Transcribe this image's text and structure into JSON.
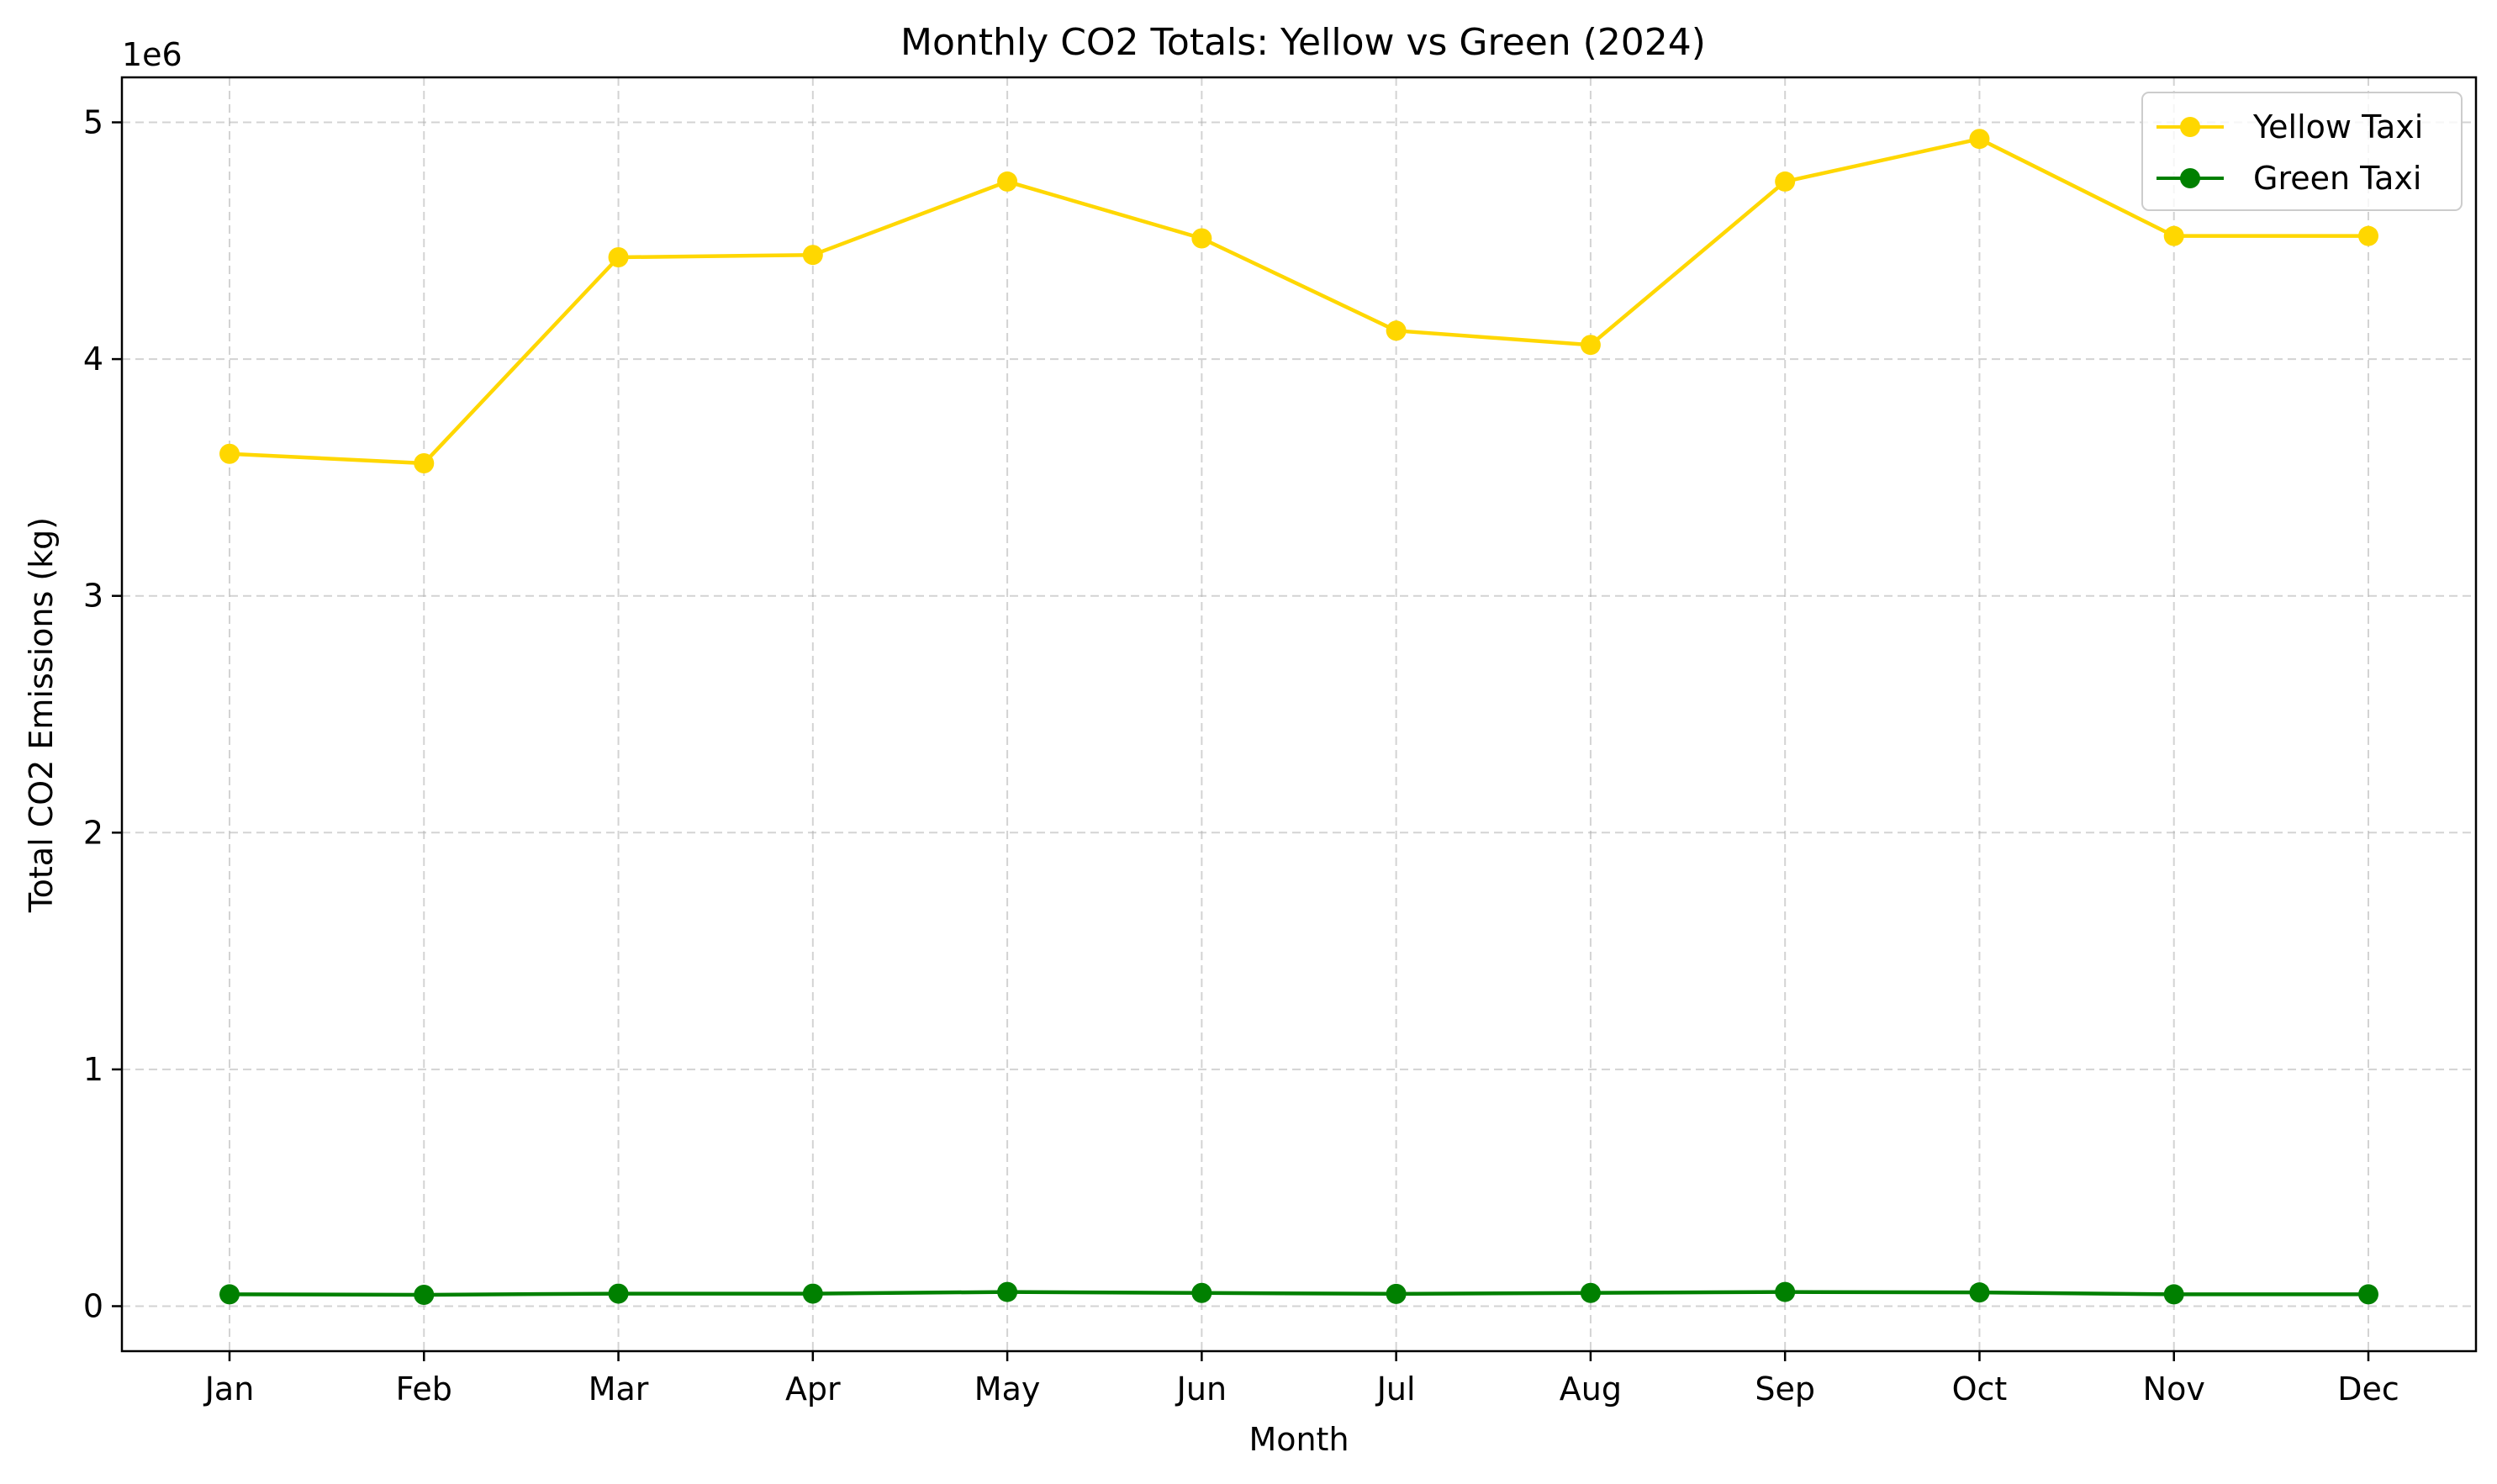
{
  "chart_data": {
    "type": "line",
    "title": "Monthly CO2 Totals: Yellow vs Green (2024)",
    "xlabel": "Month",
    "ylabel": "Total CO2 Emissions (kg)",
    "y_offset_label": "1e6",
    "categories": [
      "Jan",
      "Feb",
      "Mar",
      "Apr",
      "May",
      "Jun",
      "Jul",
      "Aug",
      "Sep",
      "Oct",
      "Nov",
      "Dec"
    ],
    "yticks": [
      0,
      1000000,
      2000000,
      3000000,
      4000000,
      5000000
    ],
    "ytick_labels": [
      "0",
      "1",
      "2",
      "3",
      "4",
      "5"
    ],
    "ylim": [
      -190000,
      5190000
    ],
    "grid": true,
    "legend_position": "top-right",
    "series": [
      {
        "name": "Yellow Taxi",
        "color": "#FFD700",
        "values": [
          3600000,
          3560000,
          4430000,
          4440000,
          4750000,
          4510000,
          4120000,
          4060000,
          4750000,
          4930000,
          4520000,
          4520000
        ]
      },
      {
        "name": "Green Taxi",
        "color": "#008000",
        "values": [
          50000,
          48000,
          53000,
          53000,
          60000,
          56000,
          52000,
          56000,
          60000,
          58000,
          50000,
          50000
        ]
      }
    ]
  }
}
